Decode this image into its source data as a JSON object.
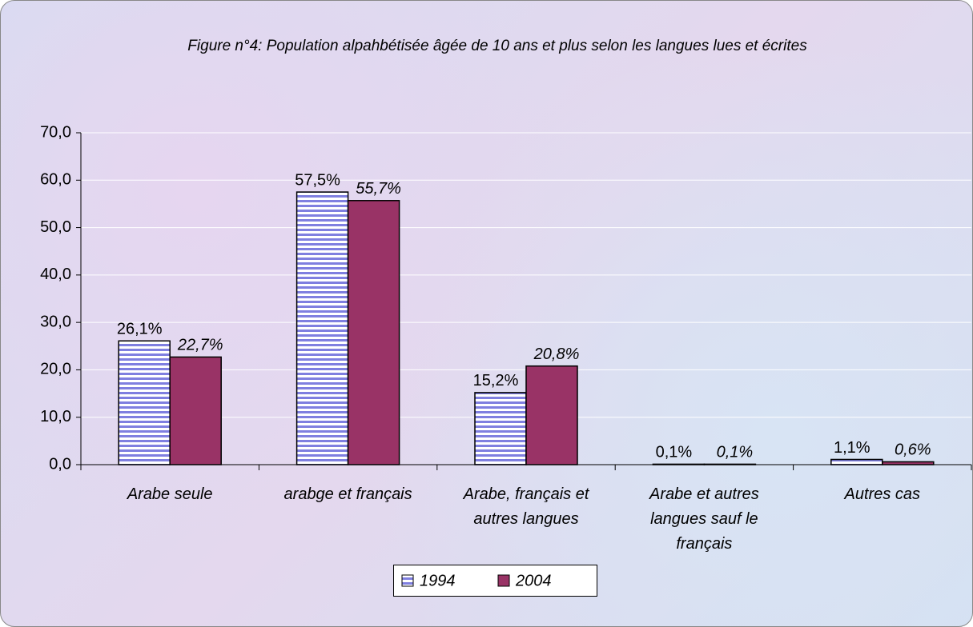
{
  "chart_data": {
    "type": "bar",
    "title": "Figure n°4: Population alpahbétisée âgée de 10 ans  et plus selon les langues lues et écrites",
    "categories": [
      "Arabe seule",
      "arabge et français",
      "Arabe, français et autres langues",
      "Arabe et autres langues sauf le français",
      "Autres cas"
    ],
    "series": [
      {
        "name": "1994",
        "color": "#7f7fe0",
        "values": [
          26.1,
          57.5,
          15.2,
          0.1,
          1.1
        ],
        "value_labels": [
          "26,1%",
          "57,5%",
          "15,2%",
          "0,1%",
          "1,1%"
        ]
      },
      {
        "name": "2004",
        "color": "#993366",
        "values": [
          22.7,
          55.7,
          20.8,
          0.1,
          0.6
        ],
        "value_labels": [
          "22,7%",
          "55,7%",
          "20,8%",
          "0,1%",
          "0,6%"
        ]
      }
    ],
    "ylim": [
      0,
      70
    ],
    "yticks": [
      {
        "value": 0,
        "label": "0,0"
      },
      {
        "value": 10,
        "label": "10,0"
      },
      {
        "value": 20,
        "label": "20,0"
      },
      {
        "value": 30,
        "label": "30,0"
      },
      {
        "value": 40,
        "label": "40,0"
      },
      {
        "value": 50,
        "label": "50,0"
      },
      {
        "value": 60,
        "label": "60,0"
      },
      {
        "value": 70,
        "label": "70,0"
      }
    ],
    "grid": true,
    "legend": "bottom"
  }
}
